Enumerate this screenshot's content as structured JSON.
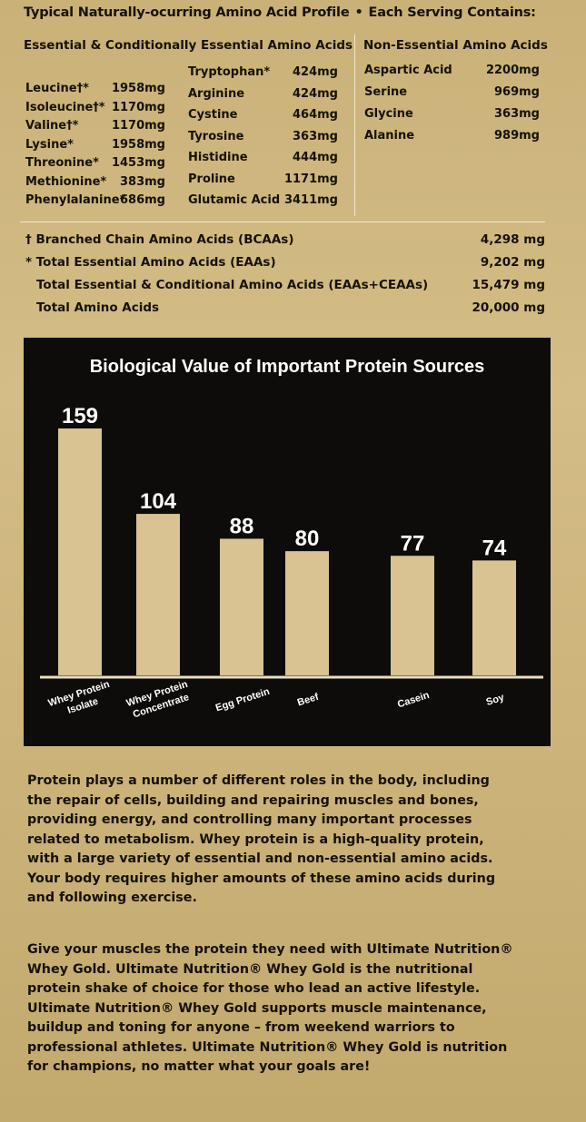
{
  "header": {
    "left": "Typical Naturally-ocurring Amino Acid Profile",
    "separator": "•",
    "right": "Each Serving Contains:"
  },
  "columns": {
    "essential_title": "Essential & Conditionally Essential Amino Acids",
    "non_essential_title": "Non-Essential Amino Acids"
  },
  "essential_col1": [
    {
      "name": "Leucine†*",
      "value": "1958mg"
    },
    {
      "name": "Isoleucine†*",
      "value": "1170mg"
    },
    {
      "name": "Valine†*",
      "value": "1170mg"
    },
    {
      "name": "Lysine*",
      "value": "1958mg"
    },
    {
      "name": "Threonine*",
      "value": "1453mg"
    },
    {
      "name": "Methionine*",
      "value": "383mg"
    },
    {
      "name": "Phenylalanine*",
      "value": "686mg"
    }
  ],
  "essential_col2": [
    {
      "name": "Tryptophan*",
      "value": "424mg"
    },
    {
      "name": "Arginine",
      "value": "424mg"
    },
    {
      "name": "Cystine",
      "value": "464mg"
    },
    {
      "name": "Tyrosine",
      "value": "363mg"
    },
    {
      "name": "Histidine",
      "value": "444mg"
    },
    {
      "name": "Proline",
      "value": "1171mg"
    },
    {
      "name": "Glutamic Acid",
      "value": "3411mg"
    }
  ],
  "non_essential": [
    {
      "name": "Aspartic Acid",
      "value": "2200mg"
    },
    {
      "name": "Serine",
      "value": "969mg"
    },
    {
      "name": "Glycine",
      "value": "363mg"
    },
    {
      "name": "Alanine",
      "value": "989mg"
    }
  ],
  "totals": [
    {
      "label": "† Branched Chain Amino Acids (BCAAs)",
      "value": "4,298 mg"
    },
    {
      "label": "* Total Essential Amino Acids (EAAs)",
      "value": "9,202 mg"
    },
    {
      "label": "Total Essential & Conditional Amino Acids (EAAs+CEAAs)",
      "value": "15,479 mg"
    },
    {
      "label": "Total Amino Acids",
      "value": "20,000 mg"
    }
  ],
  "chart_data": {
    "type": "bar",
    "title": "Biological Value of Important Protein Sources",
    "categories": [
      [
        "Whey Protein",
        "Isolate"
      ],
      [
        "Whey Protein",
        "Concentrate"
      ],
      [
        "Egg Protein"
      ],
      [
        "Beef"
      ],
      [
        "Casein"
      ],
      [
        "Soy"
      ]
    ],
    "values": [
      159,
      104,
      88,
      80,
      77,
      74
    ],
    "data_labels": [
      "159",
      "104",
      "88",
      "80",
      "77",
      "74"
    ],
    "ylim": [
      0,
      159
    ],
    "grid": false,
    "bar_color": "#d9c393",
    "background_color": "#0d0c0a"
  },
  "paragraphs": [
    [
      "Protein plays a number of different roles in the body, including",
      "the repair of cells, building and repairing muscles and bones,",
      "providing energy, and controlling many important processes",
      "related to metabolism. Whey protein is a high-quality protein,",
      "with a large variety of essential and non-essential amino acids.",
      "Your body requires higher amounts of these amino acids during",
      "and following exercise."
    ],
    [
      "Give your muscles the protein they need with Ultimate Nutrition®",
      "Whey Gold. Ultimate Nutrition® Whey Gold is the nutritional",
      "protein shake of choice for those who lead an active lifestyle.",
      "Ultimate Nutrition® Whey Gold supports muscle maintenance,",
      "buildup and toning for anyone – from weekend warriors to",
      "professional athletes. Ultimate Nutrition® Whey Gold is nutrition",
      "for champions, no matter what your goals are!"
    ]
  ]
}
